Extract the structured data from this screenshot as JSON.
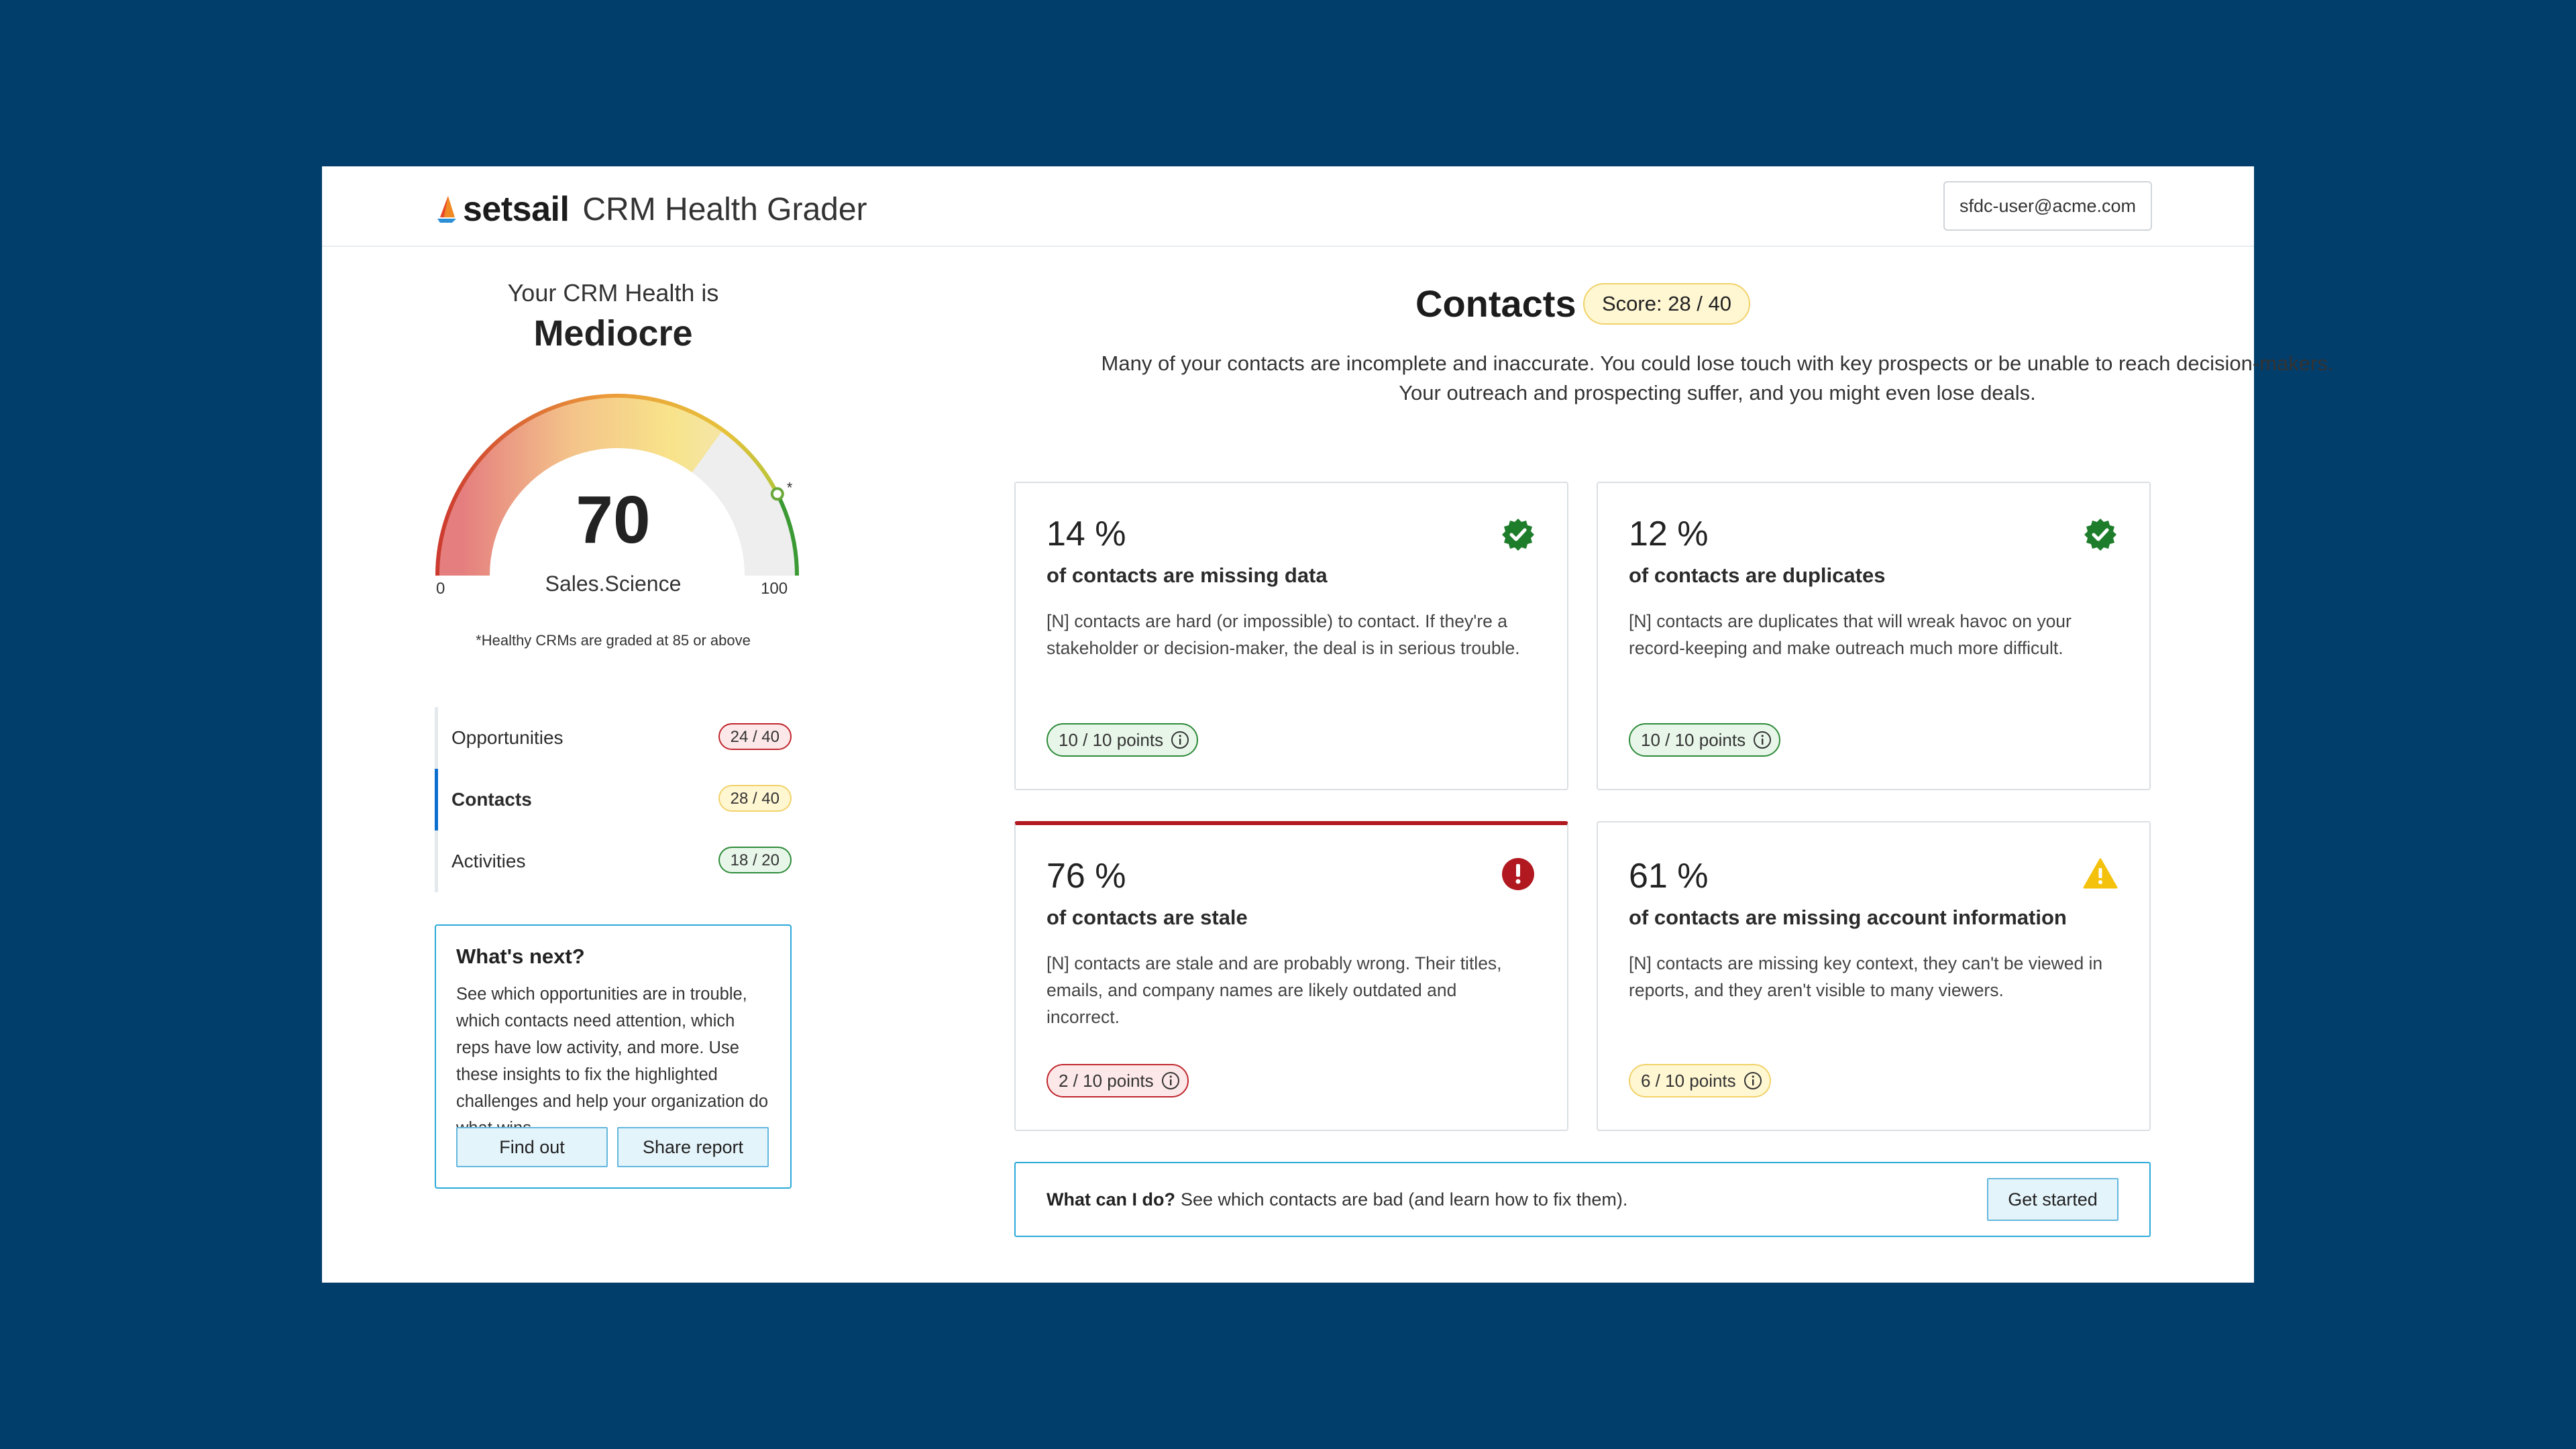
{
  "header": {
    "brand": "setsail",
    "product": "CRM Health Grader",
    "user": "sfdc-user@acme.com"
  },
  "health": {
    "label": "Your CRM Health is",
    "grade": "Mediocre",
    "score": "70",
    "score_value": 70,
    "max": 100,
    "healthy_threshold": 85,
    "caption": "Sales.Science",
    "min_label": "0",
    "max_label": "100",
    "note": "*Healthy CRMs are graded at 85 or above"
  },
  "categories": [
    {
      "label": "Opportunities",
      "score": "24 / 40",
      "status": "red"
    },
    {
      "label": "Contacts",
      "score": "28 / 40",
      "status": "yellow",
      "active": true
    },
    {
      "label": "Activities",
      "score": "18 / 20",
      "status": "green"
    }
  ],
  "next": {
    "title": "What's next?",
    "text": "See which opportunities are in trouble, which contacts need attention, which reps have low activity, and more. Use these insights to fix the highlighted challenges and help your organization do what wins.",
    "find_out": "Find out",
    "share": "Share report"
  },
  "main": {
    "title": "Contacts",
    "score": "Score: 28 / 40",
    "description": "Many of your contacts are incomplete and inaccurate. You could lose touch with key prospects or be unable to reach decision-makers. Your outreach and prospecting suffer, and you might even lose deals."
  },
  "cards": [
    {
      "pct": "14 %",
      "title": "of contacts are missing data",
      "body": "[N] contacts are hard (or impossible) to contact. If they're a stakeholder or decision-maker, the deal is in serious trouble.",
      "points": "10 / 10 points",
      "status": "good",
      "status_icon": "check-badge-icon"
    },
    {
      "pct": "12 %",
      "title": "of contacts are duplicates",
      "body": "[N] contacts are duplicates that will wreak havoc on your record-keeping and make outreach much more difficult.",
      "points": "10 / 10 points",
      "status": "good",
      "status_icon": "check-badge-icon"
    },
    {
      "pct": "76 %",
      "title": "of contacts are stale",
      "body": "[N] contacts are stale and are probably wrong. Their titles, emails, and company names are likely outdated and incorrect.",
      "points": "2 / 10 points",
      "status": "bad",
      "status_icon": "error-icon"
    },
    {
      "pct": "61 %",
      "title": "of contacts are missing account information",
      "body": "[N] contacts are missing key context, they can't be viewed in reports, and they aren't visible to many viewers.",
      "points": "6 / 10 points",
      "status": "warn",
      "status_icon": "warning-icon"
    }
  ],
  "cta": {
    "question": "What can I do?",
    "answer": "See which contacts are bad (and learn how to fix them).",
    "button": "Get started"
  },
  "colors": {
    "background": "#023e6b",
    "accent": "#2aa9d9",
    "good": "#1e7d2b",
    "bad": "#b1181f",
    "warn": "#f4c20d"
  }
}
